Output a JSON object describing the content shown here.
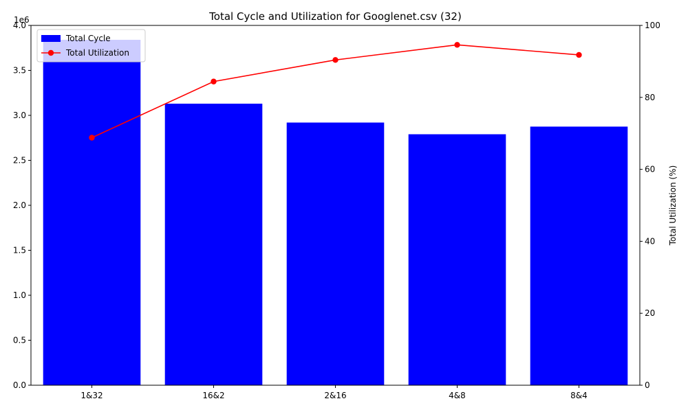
{
  "chart_data": {
    "type": "bar",
    "title": "Total Cycle and Utilization for Googlenet.csv (32)",
    "categories": [
      "1&32",
      "16&2",
      "2&16",
      "4&8",
      "8&4"
    ],
    "series": [
      {
        "name": "Total Cycle",
        "type": "bar",
        "axis": "left",
        "color": "#0000ff",
        "values": [
          3840000,
          3130000,
          2920000,
          2790000,
          2875000
        ]
      },
      {
        "name": "Total Utilization",
        "type": "line",
        "axis": "right",
        "color": "#ff0000",
        "marker": "circle",
        "values": [
          68.8,
          84.4,
          90.4,
          94.6,
          91.8
        ]
      }
    ],
    "xlabel": "",
    "ylabel_left": "",
    "ylabel_right": "Total Utilization (%)",
    "y_left": {
      "lim": [
        0,
        4000000
      ],
      "ticks": [
        0,
        500000,
        1000000,
        1500000,
        2000000,
        2500000,
        3000000,
        3500000,
        4000000
      ],
      "tick_labels": [
        "0.0",
        "0.5",
        "1.0",
        "1.5",
        "2.0",
        "2.5",
        "3.0",
        "3.5",
        "4.0"
      ],
      "offset_text": "1e6"
    },
    "y_right": {
      "lim": [
        0,
        100
      ],
      "ticks": [
        0,
        20,
        40,
        60,
        80,
        100
      ],
      "tick_labels": [
        "0",
        "20",
        "40",
        "60",
        "80",
        "100"
      ]
    },
    "grid": false,
    "legend": "upper-left"
  }
}
